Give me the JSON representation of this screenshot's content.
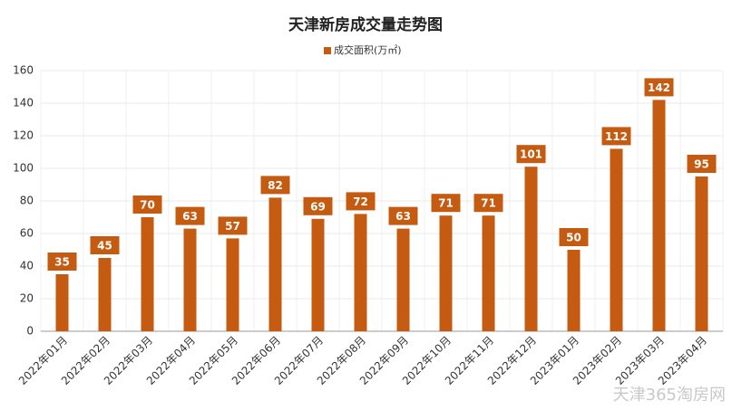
{
  "chart_data": {
    "type": "bar",
    "title": "天津新房成交量走势图",
    "categories": [
      "2022年01月",
      "2022年02月",
      "2022年03月",
      "2022年04月",
      "2022年05月",
      "2022年06月",
      "2022年07月",
      "2022年08月",
      "2022年09月",
      "2022年10月",
      "2022年11月",
      "2022年12月",
      "2023年01月",
      "2023年02月",
      "2023年03月",
      "2023年04月"
    ],
    "series": [
      {
        "name": "成交面积(万㎡)",
        "color": "#c55a11",
        "values": [
          35,
          45,
          70,
          63,
          57,
          82,
          69,
          72,
          63,
          71,
          71,
          101,
          50,
          112,
          142,
          95
        ]
      }
    ],
    "ylim": [
      0,
      160
    ],
    "yticks": [
      0,
      20,
      40,
      60,
      80,
      100,
      120,
      140,
      160
    ],
    "grid": true,
    "watermark": "天津365淘房网"
  }
}
